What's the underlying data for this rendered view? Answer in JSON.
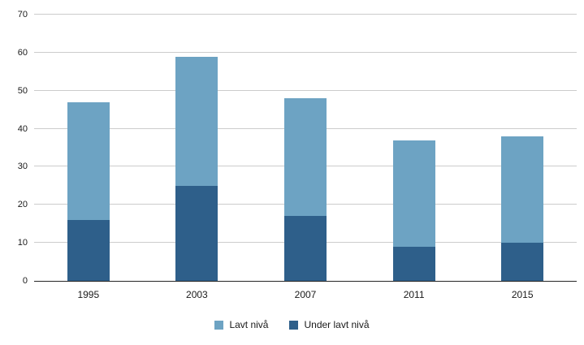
{
  "chart_data": {
    "type": "bar",
    "stacked": true,
    "title": "",
    "xlabel": "",
    "ylabel": "",
    "categories": [
      "1995",
      "2003",
      "2007",
      "2011",
      "2015"
    ],
    "series": [
      {
        "name": "Under lavt nivå",
        "color": "#2e5f8a",
        "values": [
          16,
          25,
          17,
          9,
          10
        ]
      },
      {
        "name": "Lavt nivå",
        "color": "#6da3c3",
        "values": [
          31,
          34,
          31,
          28,
          28
        ]
      }
    ],
    "totals": [
      47,
      59,
      48,
      37,
      38
    ],
    "ylim": [
      0,
      70
    ],
    "ytick_step": 10,
    "ytick_labels": [
      "0",
      "10",
      "20",
      "30",
      "40",
      "50",
      "60",
      "70"
    ],
    "grid": true,
    "legend": [
      "Lavt nivå",
      "Under lavt nivå"
    ],
    "legend_position": "bottom"
  },
  "colors": {
    "background": "#ffffff",
    "gridline": "#cccccc",
    "axis_line": "#262626",
    "text": "#1a1a1a"
  }
}
